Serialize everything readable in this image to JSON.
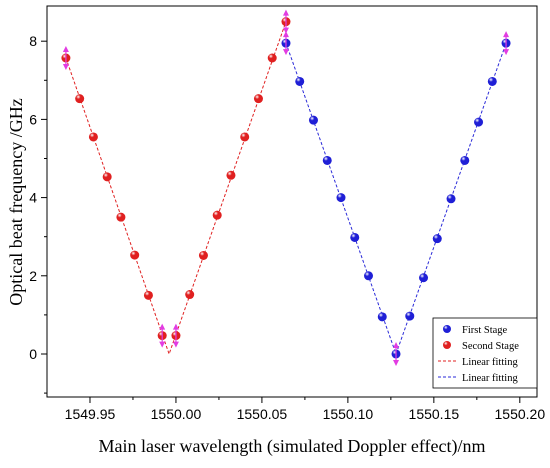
{
  "chart_data": {
    "type": "scatter",
    "xlabel": "Main laser wavelength (simulated Doppler effect)/nm",
    "ylabel": "Optical beat frequency /GHz",
    "xlim": [
      1549.925,
      1550.21
    ],
    "ylim": [
      -1.1,
      8.9
    ],
    "xticks": [
      1549.95,
      1550.0,
      1550.05,
      1550.1,
      1550.15,
      1550.2
    ],
    "xtick_labels": [
      "1549.95",
      "1550.00",
      "1550.05",
      "1550.10",
      "1550.15",
      "1550.20"
    ],
    "yticks": [
      0,
      2,
      4,
      6,
      8
    ],
    "ytick_labels": [
      "0",
      "2",
      "4",
      "6",
      "8"
    ],
    "legend_position": "bottom-right",
    "series": [
      {
        "name": "First Stage",
        "kind": "points",
        "color": "#1f1fd6",
        "x": [
          1550.064,
          1550.072,
          1550.08,
          1550.088,
          1550.096,
          1550.104,
          1550.112,
          1550.12,
          1550.128,
          1550.136,
          1550.144,
          1550.152,
          1550.16,
          1550.168,
          1550.176,
          1550.184,
          1550.192
        ],
        "y": [
          7.95,
          6.97,
          5.98,
          4.95,
          4.0,
          2.98,
          2.0,
          0.95,
          0.0,
          0.97,
          1.95,
          2.95,
          3.97,
          4.95,
          5.93,
          6.97,
          7.95
        ]
      },
      {
        "name": "Second Stage",
        "kind": "points",
        "color": "#e02020",
        "x": [
          1549.936,
          1549.944,
          1549.952,
          1549.96,
          1549.968,
          1549.976,
          1549.984,
          1549.992,
          1550.0,
          1550.008,
          1550.016,
          1550.024,
          1550.032,
          1550.04,
          1550.048,
          1550.056,
          1550.064
        ],
        "y": [
          7.57,
          6.53,
          5.55,
          4.53,
          3.5,
          2.53,
          1.5,
          0.47,
          0.47,
          1.52,
          2.52,
          3.55,
          4.57,
          5.55,
          6.53,
          7.57,
          8.5
        ]
      },
      {
        "name": "Linear  fitting",
        "kind": "fit",
        "color": "#e02020",
        "x": [
          1549.936,
          1549.996,
          1550.064
        ],
        "y": [
          7.57,
          0.0,
          8.5
        ]
      },
      {
        "name": "Linear  fitting",
        "kind": "fit",
        "color": "#2a2ad8",
        "x": [
          1550.064,
          1550.128,
          1550.192
        ],
        "y": [
          7.95,
          0.0,
          7.95
        ]
      }
    ],
    "error_markers": {
      "color": "#e23ce2",
      "points": [
        {
          "x": 1549.936,
          "y": 7.57
        },
        {
          "x": 1549.992,
          "y": 0.47
        },
        {
          "x": 1550.0,
          "y": 0.47
        },
        {
          "x": 1550.064,
          "y": 8.5
        },
        {
          "x": 1550.064,
          "y": 7.95
        },
        {
          "x": 1550.128,
          "y": 0.0
        },
        {
          "x": 1550.192,
          "y": 7.95
        }
      ]
    }
  }
}
